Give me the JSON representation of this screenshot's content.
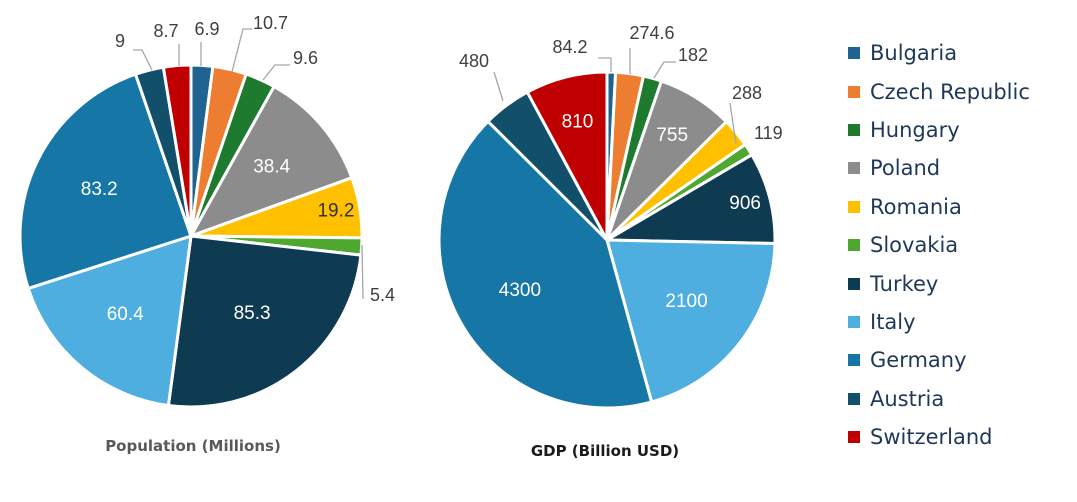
{
  "chart_data": [
    {
      "type": "pie",
      "title": "Population (Millions)",
      "categories": [
        "Bulgaria",
        "Czech Republic",
        "Hungary",
        "Poland",
        "Romania",
        "Slovakia",
        "Turkey",
        "Italy",
        "Germany",
        "Austria",
        "Switzerland"
      ],
      "values": [
        6.9,
        10.7,
        9.6,
        38.4,
        19.2,
        5.4,
        85.3,
        60.4,
        83.2,
        9,
        8.7
      ],
      "value_labels": [
        "6.9",
        "10.7",
        "9.6",
        "38.4",
        "19.2",
        "5.4",
        "85.3",
        "60.4",
        "83.2",
        "9",
        "8.7"
      ],
      "label_inside": [
        false,
        false,
        false,
        true,
        true,
        false,
        true,
        true,
        true,
        false,
        false
      ]
    },
    {
      "type": "pie",
      "title": "GDP (Billion USD)",
      "categories": [
        "Bulgaria",
        "Czech Republic",
        "Hungary",
        "Poland",
        "Romania",
        "Slovakia",
        "Turkey",
        "Italy",
        "Germany",
        "Austria",
        "Switzerland"
      ],
      "values": [
        84.2,
        274.6,
        182,
        755,
        288,
        119,
        906,
        2100,
        4300,
        480,
        810
      ],
      "value_labels": [
        "84.2",
        "274.6",
        "182",
        "755",
        "288",
        "119",
        "906",
        "2100",
        "4300",
        "480",
        "810"
      ],
      "label_inside": [
        false,
        false,
        false,
        true,
        false,
        false,
        true,
        true,
        true,
        false,
        true
      ]
    }
  ],
  "legend": {
    "position": "right",
    "items": [
      {
        "label": "Bulgaria",
        "color": "#1f6391"
      },
      {
        "label": "Czech Republic",
        "color": "#ed7d31"
      },
      {
        "label": "Hungary",
        "color": "#1e7a2e"
      },
      {
        "label": "Poland",
        "color": "#8c8c8c"
      },
      {
        "label": "Romania",
        "color": "#ffc000"
      },
      {
        "label": "Slovakia",
        "color": "#4ea72e"
      },
      {
        "label": "Turkey",
        "color": "#0e3a52"
      },
      {
        "label": "Italy",
        "color": "#4eaee0"
      },
      {
        "label": "Germany",
        "color": "#1677a6"
      },
      {
        "label": "Austria",
        "color": "#124f6b"
      },
      {
        "label": "Switzerland",
        "color": "#c00000"
      }
    ]
  },
  "titles": {
    "population": "Population (Millions)",
    "gdp": "GDP (Billion USD)",
    "population_color": "#595959",
    "gdp_color": "#1a1a1a"
  }
}
